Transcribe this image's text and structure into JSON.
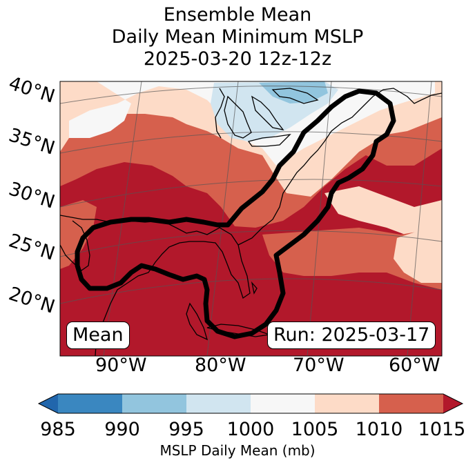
{
  "title": {
    "line1": "Ensemble Mean",
    "line2": "Daily Mean Minimum MSLP",
    "line3": "2025-03-20 12z-12z"
  },
  "map": {
    "lat_labels": [
      "40°N",
      "35°N",
      "30°N",
      "25°N",
      "20°N"
    ],
    "lon_labels": [
      "90°W",
      "80°W",
      "70°W",
      "60°W"
    ],
    "badge_left": "Mean",
    "badge_right": "Run: 2025-03-17"
  },
  "colorbar": {
    "ticks": [
      "985",
      "990",
      "995",
      "1000",
      "1005",
      "1010",
      "1015"
    ],
    "label": "MSLP Daily Mean (mb)",
    "colors": [
      "#2166ac",
      "#3a87c0",
      "#92c5de",
      "#d1e5f0",
      "#f7f7f7",
      "#fddbc7",
      "#d6604d",
      "#b2182b"
    ]
  }
}
